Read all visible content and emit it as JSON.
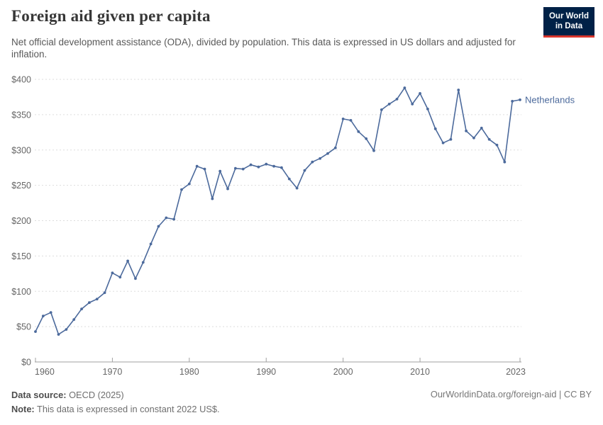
{
  "header": {
    "title": "Foreign aid given per capita",
    "subtitle": "Net official development assistance (ODA), divided by population. This data is expressed in US dollars and adjusted for inflation.",
    "logo": {
      "line1": "Our World",
      "line2": "in Data"
    }
  },
  "chart_data": {
    "type": "line",
    "title": "Foreign aid given per capita",
    "entity": "Netherlands",
    "x": [
      1960,
      1961,
      1962,
      1963,
      1964,
      1965,
      1966,
      1967,
      1968,
      1969,
      1970,
      1971,
      1972,
      1973,
      1974,
      1975,
      1976,
      1977,
      1978,
      1979,
      1980,
      1981,
      1982,
      1983,
      1984,
      1985,
      1986,
      1987,
      1988,
      1989,
      1990,
      1991,
      1992,
      1993,
      1994,
      1995,
      1996,
      1997,
      1998,
      1999,
      2000,
      2001,
      2002,
      2003,
      2004,
      2005,
      2006,
      2007,
      2008,
      2009,
      2010,
      2011,
      2012,
      2013,
      2014,
      2015,
      2016,
      2017,
      2018,
      2019,
      2020,
      2021,
      2022,
      2023
    ],
    "values": [
      43,
      65,
      70,
      39,
      46,
      60,
      75,
      84,
      89,
      98,
      126,
      120,
      143,
      118,
      141,
      167,
      192,
      204,
      202,
      244,
      252,
      277,
      273,
      231,
      270,
      245,
      274,
      273,
      279,
      276,
      280,
      277,
      275,
      259,
      246,
      271,
      283,
      288,
      295,
      303,
      344,
      342,
      326,
      316,
      299,
      357,
      365,
      372,
      388,
      365,
      380,
      358,
      330,
      310,
      315,
      385,
      327,
      317,
      331,
      315,
      307,
      283,
      369,
      371
    ],
    "xlim": [
      1960,
      2023
    ],
    "ylim": [
      0,
      400
    ],
    "xticks": [
      1960,
      1970,
      1980,
      1990,
      2000,
      2010,
      2023
    ],
    "yticks": [
      0,
      50,
      100,
      150,
      200,
      250,
      300,
      350,
      400
    ],
    "ytick_labels": [
      "$0",
      "$50",
      "$100",
      "$150",
      "$200",
      "$250",
      "$300",
      "$350",
      "$400"
    ],
    "grid": true,
    "legend_position": "end-of-line",
    "line_color": "#4c6a9c",
    "grid_color": "#dddddd",
    "axis_color": "#a1a1a1",
    "tick_label_color": "#666666"
  },
  "footer": {
    "source_label": "Data source:",
    "source_value": " OECD (2025)",
    "note_label": "Note:",
    "note_value": " This data is expressed in constant 2022 US$.",
    "link": "OurWorldinData.org/foreign-aid | CC BY"
  }
}
